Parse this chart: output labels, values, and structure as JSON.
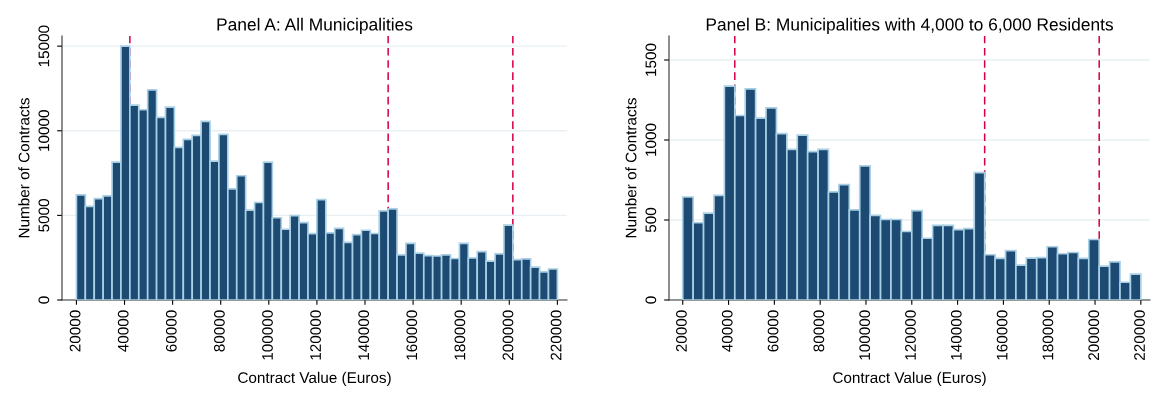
{
  "chart_data": [
    {
      "type": "histogram",
      "title": "Panel A: All Municipalities",
      "xlabel": "Contract Value (Euros)",
      "ylabel": "Number of Contracts",
      "color": "#1c4a72",
      "bins": [
        20000,
        23704,
        27407,
        31111,
        34815,
        38519,
        42222,
        45926,
        49630,
        53333,
        57037,
        60741,
        64444,
        68148,
        71852,
        75556,
        79259,
        82963,
        86667,
        90370,
        94074,
        97778,
        101481,
        105185,
        108889,
        112593,
        116296,
        120000,
        123704,
        127407,
        131111,
        134815,
        138519,
        142222,
        145926,
        149630,
        153333,
        157037,
        160741,
        164444,
        168148,
        171852,
        175556,
        179259,
        182963,
        186667,
        190370,
        194074,
        197778,
        201481,
        205185,
        208889,
        212593,
        216296,
        220000
      ],
      "values": [
        6210,
        5530,
        5990,
        6150,
        8150,
        15000,
        11520,
        11240,
        12420,
        10790,
        11400,
        9020,
        9490,
        9730,
        10560,
        8210,
        9790,
        6570,
        7340,
        5310,
        5760,
        8150,
        4860,
        4180,
        4990,
        4570,
        3920,
        5930,
        3970,
        4230,
        3410,
        3860,
        4120,
        3930,
        5270,
        5380,
        2670,
        3350,
        2770,
        2620,
        2600,
        2670,
        2450,
        3350,
        2480,
        2860,
        2300,
        2730,
        4420,
        2390,
        2430,
        1940,
        1660,
        1830
      ],
      "xlim": [
        14000,
        224000
      ],
      "xticks": [
        20000,
        40000,
        60000,
        80000,
        100000,
        120000,
        140000,
        160000,
        180000,
        200000,
        220000
      ],
      "ylim": [
        0,
        15600
      ],
      "yticks": [
        0,
        5000,
        10000,
        15000
      ],
      "grid": "y",
      "ref_lines": [
        {
          "axis": "x",
          "value": 42222,
          "color": "#d6004a",
          "line_style": "dashed"
        },
        {
          "axis": "x",
          "value": 149630,
          "color": "#d6004a",
          "line_style": "dashed"
        },
        {
          "axis": "x",
          "value": 201481,
          "color": "#d6004a",
          "line_style": "dashed"
        }
      ]
    },
    {
      "type": "histogram",
      "title": "Panel B: Municipalities with 4,000 to 6,000 Residents",
      "xlabel": "Contract Value (Euros)",
      "ylabel": "Number of Contracts",
      "color": "#1c4a72",
      "bins": [
        20000,
        24545,
        29091,
        33636,
        38182,
        42727,
        47273,
        51818,
        56364,
        60909,
        65455,
        70000,
        74545,
        79091,
        83636,
        88182,
        92727,
        97273,
        101818,
        106364,
        110909,
        115455,
        120000,
        124545,
        129091,
        133636,
        138182,
        142727,
        147273,
        151818,
        156364,
        160909,
        165455,
        170000,
        174545,
        179091,
        183636,
        188182,
        192727,
        197273,
        201818,
        206364,
        210909,
        215455,
        220000
      ],
      "values": [
        644,
        483,
        543,
        654,
        1337,
        1153,
        1320,
        1137,
        1201,
        1040,
        941,
        1030,
        927,
        941,
        676,
        721,
        563,
        838,
        529,
        503,
        503,
        428,
        559,
        386,
        466,
        466,
        440,
        446,
        796,
        283,
        260,
        309,
        218,
        262,
        265,
        333,
        289,
        297,
        260,
        378,
        212,
        238,
        111,
        162
      ],
      "xlim": [
        14000,
        224000
      ],
      "xticks": [
        20000,
        40000,
        60000,
        80000,
        100000,
        120000,
        140000,
        160000,
        180000,
        200000,
        220000
      ],
      "ylim": [
        0,
        1650
      ],
      "yticks": [
        0,
        500,
        1000,
        1500
      ],
      "grid": "y",
      "ref_lines": [
        {
          "axis": "x",
          "value": 42727,
          "color": "#d6004a",
          "line_style": "dashed"
        },
        {
          "axis": "x",
          "value": 151818,
          "color": "#d6004a",
          "line_style": "dashed"
        },
        {
          "axis": "x",
          "value": 201818,
          "color": "#d6004a",
          "line_style": "dashed"
        }
      ]
    }
  ]
}
